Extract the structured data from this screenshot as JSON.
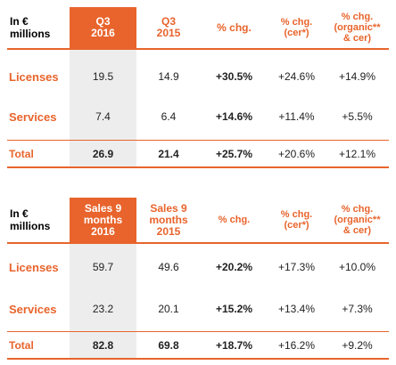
{
  "colors": {
    "accent": "#e8642c",
    "highlight_bg": "#ededed",
    "text": "#222222"
  },
  "table1": {
    "corner": "In € millions",
    "headers": [
      "Q3 2016",
      "Q3 2015",
      "% chg.",
      "% chg. (cer*)",
      "% chg. (organic** & cer)"
    ],
    "rows": [
      {
        "label": "Licenses",
        "values": [
          "19.5",
          "14.9",
          "+30.5%",
          "+24.6%",
          "+14.9%"
        ]
      },
      {
        "label": "Services",
        "values": [
          "7.4",
          "6.4",
          "+14.6%",
          "+11.4%",
          "+5.5%"
        ]
      },
      {
        "label": "Total",
        "values": [
          "26.9",
          "21.4",
          "+25.7%",
          "+20.6%",
          "+12.1%"
        ]
      }
    ]
  },
  "table2": {
    "corner": "In € millions",
    "headers": [
      "Sales 9 months 2016",
      "Sales 9 months 2015",
      "% chg.",
      "% chg. (cer*)",
      "% chg. (organic** & cer)"
    ],
    "rows": [
      {
        "label": "Licenses",
        "values": [
          "59.7",
          "49.6",
          "+20.2%",
          "+17.3%",
          "+10.0%"
        ]
      },
      {
        "label": "Services",
        "values": [
          "23.2",
          "20.1",
          "+15.2%",
          "+13.4%",
          "+7.3%"
        ]
      },
      {
        "label": "Total",
        "values": [
          "82.8",
          "69.8",
          "+18.7%",
          "+16.2%",
          "+9.2%"
        ]
      }
    ]
  }
}
